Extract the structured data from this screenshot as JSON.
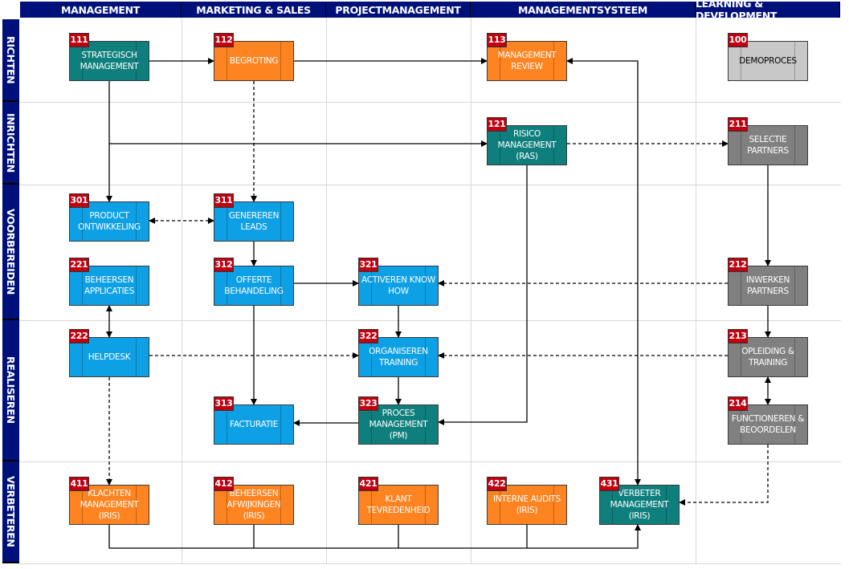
{
  "columns": [
    "MANAGEMENT",
    "MARKETING & SALES",
    "PROJECTMANAGEMENT",
    "MANAGEMENTSYSTEEM",
    "LEARNING & DEVELOPMENT"
  ],
  "rows": [
    "RICHTEN",
    "INRICHTEN",
    "VOORBEREIDEN",
    "REALISEREN",
    "VERBETEREN"
  ],
  "colors": {
    "header": "#00107a",
    "teal": "#0e7f7c",
    "orange": "#fd8421",
    "blue": "#0ea0e4",
    "gray": "#808080",
    "lightgray": "#c8c8c8",
    "badge": "#c00010"
  },
  "processes": [
    {
      "id": "111",
      "label": "STRATEGISCH\nMANAGEMENT",
      "color": "teal"
    },
    {
      "id": "112",
      "label": "BEGROTING",
      "color": "orange"
    },
    {
      "id": "113",
      "label": "MANAGEMENT\nREVIEW",
      "color": "orange"
    },
    {
      "id": "100",
      "label": "DEMOPROCES",
      "color": "lightgray"
    },
    {
      "id": "121",
      "label": "RISICO\nMANAGEMENT\n(RAS)",
      "color": "teal"
    },
    {
      "id": "211",
      "label": "SELECTIE\nPARTNERS",
      "color": "gray"
    },
    {
      "id": "301",
      "label": "PRODUCT\nONTWIKKELING",
      "color": "blue"
    },
    {
      "id": "311",
      "label": "GENEREREN\nLEADS",
      "color": "blue"
    },
    {
      "id": "221",
      "label": "BEHEERSEN\nAPPLICATIES",
      "color": "blue"
    },
    {
      "id": "312",
      "label": "OFFERTE\nBEHANDELING",
      "color": "blue"
    },
    {
      "id": "321",
      "label": "ACTIVEREN KNOW\nHOW",
      "color": "blue"
    },
    {
      "id": "212",
      "label": "INWERKEN\nPARTNERS",
      "color": "gray"
    },
    {
      "id": "222",
      "label": "HELPDESK",
      "color": "blue"
    },
    {
      "id": "322",
      "label": "ORGANISEREN\nTRAINING",
      "color": "blue"
    },
    {
      "id": "213",
      "label": "OPLEIDING &\nTRAINING",
      "color": "gray"
    },
    {
      "id": "313",
      "label": "FACTURATIE",
      "color": "blue"
    },
    {
      "id": "323",
      "label": "PROCES\nMANAGEMENT\n(PM)",
      "color": "teal"
    },
    {
      "id": "214",
      "label": "FUNCTIONEREN &\nBEOORDELEN",
      "color": "gray"
    },
    {
      "id": "411",
      "label": "KLACHTEN\nMANAGEMENT\n(IRIS)",
      "color": "orange"
    },
    {
      "id": "412",
      "label": "BEHEERSEN\nAFWIJKINGEN\n(IRIS)",
      "color": "orange"
    },
    {
      "id": "421",
      "label": "KLANT\nTEVREDENHEID",
      "color": "orange"
    },
    {
      "id": "422",
      "label": "INTERNE AUDITS\n(IRIS)",
      "color": "orange"
    },
    {
      "id": "431",
      "label": "VERBETER\nMANAGEMENT\n(IRIS)",
      "color": "teal"
    }
  ],
  "connections": [
    {
      "from": "111",
      "to": "112",
      "style": "solid"
    },
    {
      "from": "112",
      "to": "113",
      "style": "solid"
    },
    {
      "from": "111",
      "to": "301",
      "style": "solid"
    },
    {
      "from": "111",
      "to": "121",
      "style": "solid"
    },
    {
      "from": "112",
      "to": "311",
      "style": "dashed"
    },
    {
      "from": "301",
      "to": "311",
      "style": "dashed",
      "bidirectional": true
    },
    {
      "from": "311",
      "to": "312",
      "style": "solid"
    },
    {
      "from": "312",
      "to": "321",
      "style": "solid"
    },
    {
      "from": "312",
      "to": "313",
      "style": "solid"
    },
    {
      "from": "221",
      "to": "222",
      "style": "solid",
      "bidirectional": true
    },
    {
      "from": "222",
      "to": "322",
      "style": "dashed"
    },
    {
      "from": "222",
      "to": "411",
      "style": "dashed"
    },
    {
      "from": "321",
      "to": "322",
      "style": "solid"
    },
    {
      "from": "322",
      "to": "323",
      "style": "solid"
    },
    {
      "from": "323",
      "to": "313",
      "style": "solid"
    },
    {
      "from": "121",
      "to": "323",
      "style": "solid"
    },
    {
      "from": "121",
      "to": "211",
      "style": "dashed"
    },
    {
      "from": "211",
      "to": "212",
      "style": "solid"
    },
    {
      "from": "212",
      "to": "321",
      "style": "dashed"
    },
    {
      "from": "212",
      "to": "213",
      "style": "solid"
    },
    {
      "from": "213",
      "to": "322",
      "style": "dashed"
    },
    {
      "from": "213",
      "to": "214",
      "style": "solid",
      "bidirectional": true
    },
    {
      "from": "214",
      "to": "431",
      "style": "dashed"
    },
    {
      "from": "113",
      "to": "431",
      "style": "solid",
      "bidirectional": true
    },
    {
      "from": "411",
      "to": "431",
      "style": "solid"
    },
    {
      "from": "412",
      "to": "431",
      "style": "solid"
    },
    {
      "from": "421",
      "to": "431",
      "style": "solid"
    },
    {
      "from": "422",
      "to": "431",
      "style": "solid"
    }
  ]
}
